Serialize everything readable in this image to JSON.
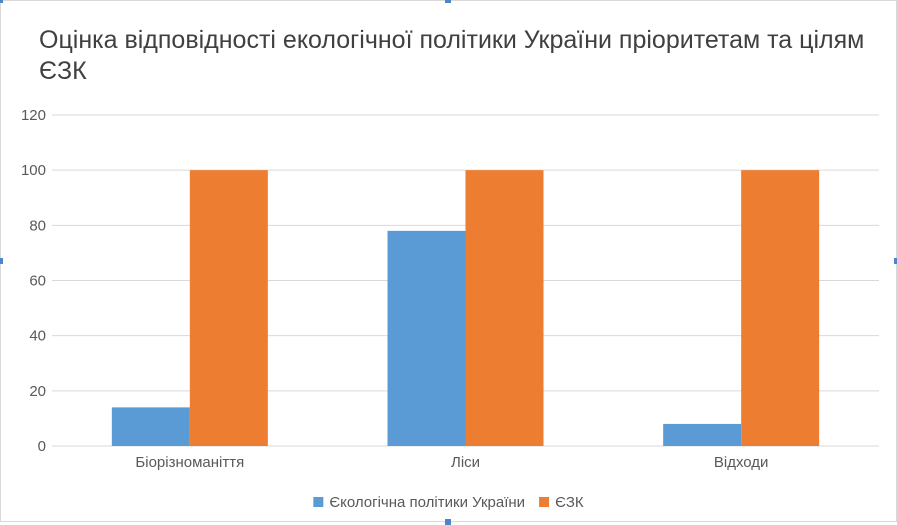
{
  "chart_data": {
    "type": "bar",
    "title": "Оцінка відповідності екологічної політики України пріоритетам та цілям ЄЗК",
    "xlabel": "",
    "ylabel": "",
    "categories": [
      "Біорізноманіття",
      "Ліси",
      "Відходи"
    ],
    "series": [
      {
        "name": "Єкологічна політики України",
        "values": [
          14,
          78,
          8
        ],
        "color": "#5b9bd5"
      },
      {
        "name": "ЄЗК",
        "values": [
          100,
          100,
          100
        ],
        "color": "#ed7d31"
      }
    ],
    "ylim": [
      0,
      120
    ],
    "yticks": [
      0,
      20,
      40,
      60,
      80,
      100,
      120
    ],
    "grid": true,
    "legend": "bottom"
  },
  "colors": {
    "grid": "#d9d9d9",
    "text": "#595959",
    "title": "#404040",
    "selection_handle": "#4a86c8"
  }
}
